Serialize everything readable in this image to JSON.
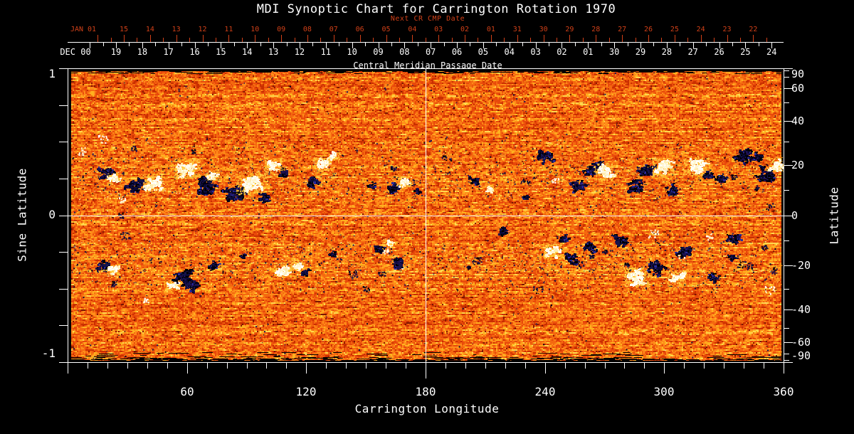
{
  "title": "MDI Synoptic Chart for Carrington Rotation 1970",
  "colors": {
    "background": "#000000",
    "text": "#ffffff",
    "accent_red": "#d04018",
    "plot_border": "#ffffff",
    "crosshair": "#ffffff"
  },
  "top_axis": {
    "next_cr_label": "Next CR CMP Date",
    "next_cr_month": "JAN 01",
    "next_cr_days": [
      "15",
      "14",
      "13",
      "12",
      "11",
      "10",
      "09",
      "08",
      "07",
      "06",
      "05",
      "04",
      "03",
      "02",
      "01",
      "31",
      "30",
      "29",
      "28",
      "27",
      "26",
      "25",
      "24",
      "23",
      "22"
    ],
    "cmp_label": "Central Meridian Passage Date",
    "cmp_month": "DEC 00",
    "cmp_days": [
      "19",
      "18",
      "17",
      "16",
      "15",
      "14",
      "13",
      "12",
      "11",
      "10",
      "09",
      "08",
      "07",
      "06",
      "05",
      "04",
      "03",
      "02",
      "01",
      "30",
      "29",
      "28",
      "27",
      "26",
      "25",
      "24"
    ]
  },
  "bottom_axis": {
    "label": "Carrington Longitude",
    "tick_labels": [
      "60",
      "120",
      "180",
      "240",
      "300",
      "360"
    ],
    "major_step": 60,
    "minor_step": 10,
    "range": [
      0,
      360
    ]
  },
  "left_axis": {
    "label": "Sine Latitude",
    "tick_labels": [
      "1",
      "0",
      "-1"
    ],
    "tick_step": 0.25,
    "range": [
      -1,
      1
    ]
  },
  "right_axis": {
    "label": "Latitude",
    "tick_labels": [
      "90",
      "60",
      "40",
      "20",
      "0",
      "-20",
      "-40",
      "-60",
      "-90"
    ],
    "minor_ticks": [
      80,
      70,
      50,
      30,
      10,
      -10,
      -30,
      -50,
      -70,
      -80
    ]
  },
  "chart_data": {
    "type": "heatmap",
    "title": "MDI Synoptic Chart for Carrington Rotation 1970",
    "xlabel": "Carrington Longitude",
    "ylabel_left": "Sine Latitude",
    "ylabel_right": "Latitude",
    "x_range": [
      0,
      360
    ],
    "y_range": [
      -1,
      1
    ],
    "crosshair": {
      "longitude": 180,
      "sine_latitude": 0
    },
    "palette": {
      "base": [
        "#7a1600",
        "#c92f00",
        "#e8490b",
        "#f4690f",
        "#ff8c1a",
        "#ffb21f",
        "#ffd84e"
      ],
      "dark_red_speck": "#8a1a00",
      "negative": [
        "#000018",
        "#0a0a38",
        "#15154a",
        "#1d1050",
        "#000000"
      ],
      "negative_fringe": "#2a2a9a",
      "positive": [
        "#ffffff",
        "#fffdf0",
        "#fff5cf",
        "#ffedb0"
      ],
      "positive_fringe": "#ffcc44",
      "streak_yellows": [
        "#ff9a18",
        "#ffc335",
        "#ef7510"
      ],
      "speck_dark": [
        "#0d0d3d",
        "#1a1a55",
        "#05051f"
      ],
      "speck_bright": [
        "#fff3c4",
        "#ffe08a",
        "#ffd75e"
      ]
    },
    "activity_bands": [
      {
        "center": 0.27,
        "halfwidth": 0.18
      },
      {
        "center": -0.33,
        "halfwidth": 0.15
      }
    ],
    "active_regions": [
      [
        19,
        0.29,
        10,
        -1
      ],
      [
        23,
        0.25,
        8,
        1
      ],
      [
        34,
        0.2,
        14,
        -1
      ],
      [
        43,
        0.22,
        12,
        1
      ],
      [
        60,
        0.32,
        14,
        1
      ],
      [
        69,
        0.2,
        16,
        -1
      ],
      [
        73,
        0.27,
        8,
        1
      ],
      [
        84,
        0.15,
        18,
        -1
      ],
      [
        92,
        0.22,
        16,
        1
      ],
      [
        98,
        0.12,
        8,
        -1
      ],
      [
        103,
        0.34,
        10,
        1
      ],
      [
        108,
        0.28,
        6,
        -1
      ],
      [
        123,
        0.23,
        9,
        -1
      ],
      [
        128,
        0.35,
        10,
        1
      ],
      [
        134,
        0.41,
        6,
        1
      ],
      [
        152,
        0.21,
        5,
        -1
      ],
      [
        164,
        0.19,
        10,
        -1
      ],
      [
        169,
        0.23,
        8,
        1
      ],
      [
        176,
        0.17,
        5,
        -1
      ],
      [
        204,
        0.24,
        7,
        -1
      ],
      [
        212,
        0.18,
        5,
        1
      ],
      [
        230,
        0.12,
        5,
        -1
      ],
      [
        240,
        0.4,
        12,
        -1
      ],
      [
        256,
        0.2,
        10,
        -1
      ],
      [
        262,
        0.3,
        9,
        -1
      ],
      [
        266,
        0.34,
        8,
        -1
      ],
      [
        270,
        0.3,
        12,
        1
      ],
      [
        285,
        0.2,
        12,
        -1
      ],
      [
        290,
        0.31,
        12,
        -1
      ],
      [
        299,
        0.33,
        12,
        1
      ],
      [
        303,
        0.18,
        10,
        -1
      ],
      [
        316,
        0.34,
        14,
        1
      ],
      [
        322,
        0.28,
        8,
        -1
      ],
      [
        328,
        0.25,
        8,
        -1
      ],
      [
        340,
        0.4,
        14,
        -1
      ],
      [
        346,
        0.4,
        8,
        -1
      ],
      [
        351,
        0.28,
        14,
        -1
      ],
      [
        356,
        0.35,
        10,
        1
      ],
      [
        17,
        -0.34,
        9,
        -1
      ],
      [
        23,
        -0.37,
        7,
        1
      ],
      [
        53,
        -0.47,
        8,
        1
      ],
      [
        57,
        -0.43,
        16,
        -1
      ],
      [
        63,
        -0.48,
        10,
        -1
      ],
      [
        73,
        -0.34,
        8,
        -1
      ],
      [
        88,
        -0.28,
        5,
        -1
      ],
      [
        108,
        -0.37,
        10,
        1
      ],
      [
        115,
        -0.34,
        8,
        1
      ],
      [
        119,
        -0.38,
        6,
        -1
      ],
      [
        133,
        -0.26,
        5,
        -1
      ],
      [
        156,
        -0.23,
        8,
        -1
      ],
      [
        161,
        -0.19,
        6,
        1
      ],
      [
        165,
        -0.32,
        10,
        -1
      ],
      [
        219,
        -0.11,
        8,
        -1
      ],
      [
        244,
        -0.24,
        10,
        1
      ],
      [
        249,
        -0.16,
        8,
        -1
      ],
      [
        252,
        -0.29,
        10,
        -1
      ],
      [
        263,
        -0.21,
        10,
        -1
      ],
      [
        277,
        -0.17,
        10,
        -1
      ],
      [
        286,
        -0.42,
        14,
        1
      ],
      [
        295,
        -0.35,
        14,
        -1
      ],
      [
        306,
        -0.42,
        10,
        1
      ],
      [
        310,
        -0.24,
        12,
        -1
      ],
      [
        324,
        -0.42,
        8,
        -1
      ],
      [
        335,
        -0.16,
        10,
        -1
      ],
      [
        334,
        -0.28,
        6,
        -1
      ]
    ]
  }
}
